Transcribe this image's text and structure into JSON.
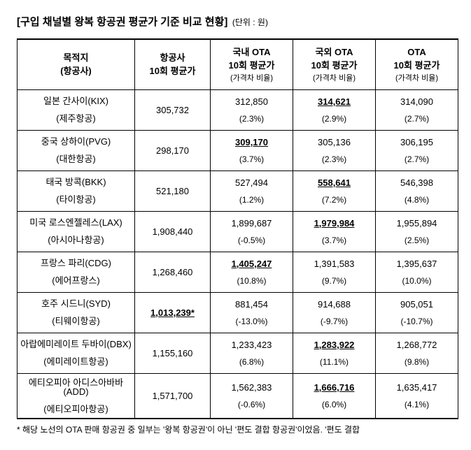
{
  "title": "[구입 채널별 왕복 항공권 평균가 기준 비교 현황]",
  "unit": "(단위 : 원)",
  "columns": {
    "dest": {
      "line1": "목적지",
      "line2": "(항공사)"
    },
    "airline": {
      "line1": "항공사",
      "line2": "10회 평균가"
    },
    "dom": {
      "line1": "국내 OTA",
      "line2": "10회 평균가",
      "sub": "(가격차 비율)"
    },
    "intl": {
      "line1": "국외 OTA",
      "line2": "10회 평균가",
      "sub": "(가격차 비율)"
    },
    "ota": {
      "line1": "OTA",
      "line2": "10회 평균가",
      "sub": "(가격차 비율)"
    }
  },
  "rows": [
    {
      "dest": "일본 간사이(KIX)",
      "carrier": "(제주항공)",
      "airline": {
        "val": "305,732",
        "hl": false
      },
      "dom": {
        "val": "312,850",
        "diff": "(2.3%)",
        "hl": false
      },
      "intl": {
        "val": "314,621",
        "diff": "(2.9%)",
        "hl": true
      },
      "ota": {
        "val": "314,090",
        "diff": "(2.7%)",
        "hl": false
      }
    },
    {
      "dest": "중국 상하이(PVG)",
      "carrier": "(대한항공)",
      "airline": {
        "val": "298,170",
        "hl": false
      },
      "dom": {
        "val": "309,170",
        "diff": "(3.7%)",
        "hl": true
      },
      "intl": {
        "val": "305,136",
        "diff": "(2.3%)",
        "hl": false
      },
      "ota": {
        "val": "306,195",
        "diff": "(2.7%)",
        "hl": false
      }
    },
    {
      "dest": "태국 방콕(BKK)",
      "carrier": "(타이항공)",
      "airline": {
        "val": "521,180",
        "hl": false
      },
      "dom": {
        "val": "527,494",
        "diff": "(1.2%)",
        "hl": false
      },
      "intl": {
        "val": "558,641",
        "diff": "(7.2%)",
        "hl": true
      },
      "ota": {
        "val": "546,398",
        "diff": "(4.8%)",
        "hl": false
      }
    },
    {
      "dest": "미국 로스엔젤레스(LAX)",
      "carrier": "(아시아나항공)",
      "airline": {
        "val": "1,908,440",
        "hl": false
      },
      "dom": {
        "val": "1,899,687",
        "diff": "(-0.5%)",
        "hl": false
      },
      "intl": {
        "val": "1,979,984",
        "diff": "(3.7%)",
        "hl": true
      },
      "ota": {
        "val": "1,955,894",
        "diff": "(2.5%)",
        "hl": false
      }
    },
    {
      "dest": "프랑스 파리(CDG)",
      "carrier": "(에어프랑스)",
      "airline": {
        "val": "1,268,460",
        "hl": false
      },
      "dom": {
        "val": "1,405,247",
        "diff": "(10.8%)",
        "hl": true
      },
      "intl": {
        "val": "1,391,583",
        "diff": "(9.7%)",
        "hl": false
      },
      "ota": {
        "val": "1,395,637",
        "diff": "(10.0%)",
        "hl": false
      }
    },
    {
      "dest": "호주 시드니(SYD)",
      "carrier": "(티웨이항공)",
      "airline": {
        "val": "1,013,239*",
        "hl": true
      },
      "dom": {
        "val": "881,454",
        "diff": "(-13.0%)",
        "hl": false
      },
      "intl": {
        "val": "914,688",
        "diff": "(-9.7%)",
        "hl": false
      },
      "ota": {
        "val": "905,051",
        "diff": "(-10.7%)",
        "hl": false
      }
    },
    {
      "dest": "아랍에미레이트 두바이(DBX)",
      "carrier": "(에미레이트항공)",
      "airline": {
        "val": "1,155,160",
        "hl": false
      },
      "dom": {
        "val": "1,233,423",
        "diff": "(6.8%)",
        "hl": false
      },
      "intl": {
        "val": "1,283,922",
        "diff": "(11.1%)",
        "hl": true
      },
      "ota": {
        "val": "1,268,772",
        "diff": "(9.8%)",
        "hl": false
      }
    },
    {
      "dest": "에티오피아 아디스아바바(ADD)",
      "carrier": "(에티오피아항공)",
      "airline": {
        "val": "1,571,700",
        "hl": false
      },
      "dom": {
        "val": "1,562,383",
        "diff": "(-0.6%)",
        "hl": false
      },
      "intl": {
        "val": "1,666,716",
        "diff": "(6.0%)",
        "hl": true
      },
      "ota": {
        "val": "1,635,417",
        "diff": "(4.1%)",
        "hl": false
      }
    }
  ],
  "footnote": "* 해당 노선의 OTA 판매 항공권 중 일부는 '왕복 항공권'이 아닌 '편도 결합 항공권'이었음. '편도 결합"
}
